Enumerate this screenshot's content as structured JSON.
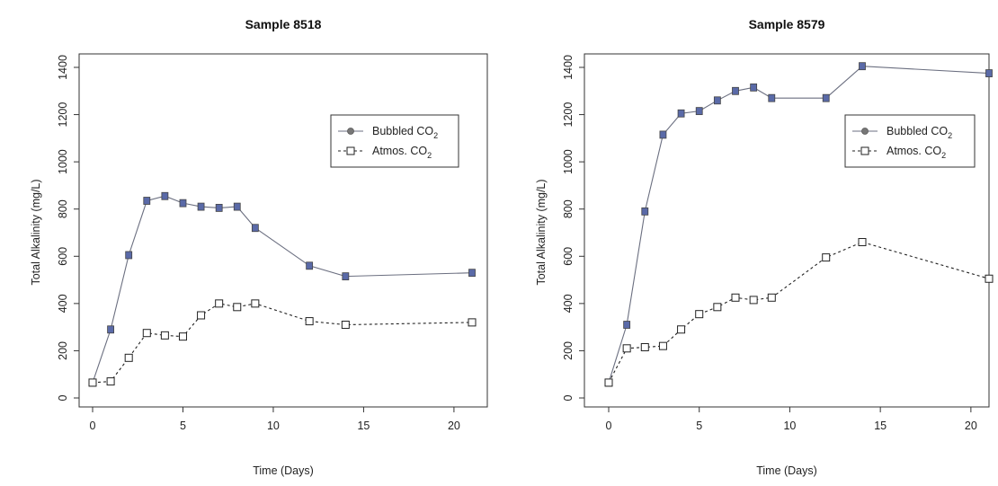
{
  "chart_data": [
    {
      "type": "line",
      "title": "Sample 8518",
      "xlabel": "Time (Days)",
      "ylabel": "Total Alkalinity (mg/L)",
      "xlim": [
        0,
        21
      ],
      "ylim": [
        0,
        1400
      ],
      "xticks": [
        "0",
        "5",
        "10",
        "15",
        "20"
      ],
      "yticks": [
        "0",
        "200",
        "400",
        "600",
        "800",
        "1000",
        "1200",
        "1400"
      ],
      "grid": false,
      "legend_position": "top-right",
      "series": [
        {
          "name": "Bubbled CO2",
          "legend_text": "Bubbled CO",
          "legend_sub": "2",
          "style": "solid-filled-square",
          "color": "#5a6aa8",
          "x": [
            0,
            1,
            2,
            3,
            4,
            5,
            6,
            7,
            8,
            9,
            12,
            14,
            21
          ],
          "y": [
            65,
            290,
            605,
            835,
            855,
            825,
            810,
            805,
            810,
            720,
            560,
            515,
            530
          ]
        },
        {
          "name": "Atmos. CO2",
          "legend_text": "Atmos. CO",
          "legend_sub": "2",
          "style": "dashed-open-square",
          "color": "#222222",
          "x": [
            0,
            1,
            2,
            3,
            4,
            5,
            6,
            7,
            8,
            9,
            12,
            14,
            21
          ],
          "y": [
            65,
            70,
            170,
            275,
            265,
            260,
            350,
            400,
            385,
            400,
            325,
            310,
            320
          ]
        }
      ]
    },
    {
      "type": "line",
      "title": "Sample 8579",
      "xlabel": "Time (Days)",
      "ylabel": "Total Alkalinity (mg/L)",
      "xlim": [
        0,
        21
      ],
      "ylim": [
        0,
        1400
      ],
      "xticks": [
        "0",
        "5",
        "10",
        "15",
        "20"
      ],
      "yticks": [
        "0",
        "200",
        "400",
        "600",
        "800",
        "1000",
        "1200",
        "1400"
      ],
      "grid": false,
      "legend_position": "top-right",
      "series": [
        {
          "name": "Bubbled CO2",
          "legend_text": "Bubbled CO",
          "legend_sub": "2",
          "style": "solid-filled-square",
          "color": "#5a6aa8",
          "x": [
            0,
            1,
            2,
            3,
            4,
            5,
            6,
            7,
            8,
            9,
            12,
            14,
            21
          ],
          "y": [
            65,
            310,
            790,
            1115,
            1205,
            1215,
            1260,
            1300,
            1315,
            1270,
            1270,
            1405,
            1375
          ]
        },
        {
          "name": "Atmos. CO2",
          "legend_text": "Atmos. CO",
          "legend_sub": "2",
          "style": "dashed-open-square",
          "color": "#222222",
          "x": [
            0,
            1,
            2,
            3,
            4,
            5,
            6,
            7,
            8,
            9,
            12,
            14,
            21
          ],
          "y": [
            65,
            210,
            215,
            220,
            290,
            355,
            385,
            425,
            415,
            425,
            595,
            660,
            505
          ]
        }
      ]
    }
  ]
}
